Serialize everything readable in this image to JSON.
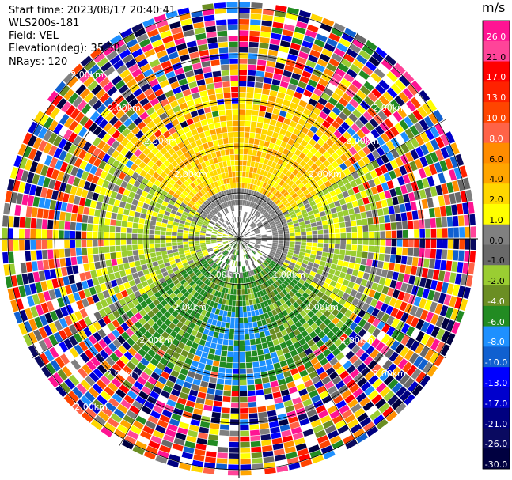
{
  "header": {
    "start_time": "Start time: 2023/08/17 20:40:41",
    "site": "WLS200s-181",
    "field": "Field: VEL",
    "elevation": "Elevation(deg): 35.30",
    "nrays": "NRays: 120"
  },
  "colorbar": {
    "unit": "m/s",
    "ticks": [
      "26.0",
      "21.0",
      "17.0",
      "13.0",
      "10.0",
      "8.0",
      "6.0",
      "4.0",
      "2.0",
      "1.0",
      "0.0",
      "-1.0",
      "-2.0",
      "-4.0",
      "-6.0",
      "-8.0",
      "-10.0",
      "-13.0",
      "-17.0",
      "-21.0",
      "-26.0",
      "-30.0"
    ],
    "colors": [
      "#ff1493",
      "#ff4499",
      "#ff0000",
      "#ff2200",
      "#ff4500",
      "#ff6347",
      "#ff8c00",
      "#ffa500",
      "#ffd700",
      "#ffff00",
      "#808080",
      "#696969",
      "#9acd32",
      "#6b8e23",
      "#228b22",
      "#1e90ff",
      "#1060d0",
      "#0000ff",
      "#0000cd",
      "#000080",
      "#0a0a60",
      "#000040"
    ]
  },
  "range_rings": {
    "labels": [
      "1.00km",
      "2.00km",
      "2.00km",
      "2.00km",
      "2.00km"
    ],
    "items": [
      {
        "label": "1.00km"
      },
      {
        "label": "2.00km"
      }
    ]
  },
  "ring_labels": [
    "2.00km",
    "2.00km",
    "2.00km",
    "2.00km",
    "2.00km",
    "2.00km",
    "2.00km",
    "1.00km",
    "1.00km",
    "2.00km",
    "2.00km",
    "2.00km",
    "2.00km",
    "2.00km",
    "2.00km",
    "2.00km"
  ]
}
